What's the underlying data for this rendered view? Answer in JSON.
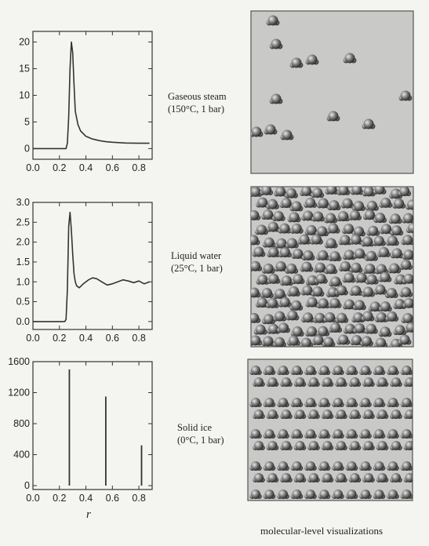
{
  "chart_data": [
    {
      "type": "line",
      "title": "",
      "xlabel": "",
      "ylabel": "",
      "xlim": [
        0.0,
        0.9
      ],
      "ylim": [
        -2,
        22
      ],
      "xticks": [
        "0.0",
        "0.2",
        "0.4",
        "0.6",
        "0.8"
      ],
      "yticks": [
        "0",
        "5",
        "10",
        "15",
        "20"
      ],
      "series": [
        {
          "x": [
            0.0,
            0.2,
            0.25,
            0.26,
            0.27,
            0.28,
            0.29,
            0.3,
            0.31,
            0.32,
            0.34,
            0.36,
            0.4,
            0.45,
            0.5,
            0.55,
            0.6,
            0.7,
            0.8,
            0.88
          ],
          "y": [
            0,
            0,
            0,
            1,
            6,
            15,
            20,
            18,
            12,
            7,
            4.5,
            3.3,
            2.3,
            1.8,
            1.5,
            1.3,
            1.2,
            1.05,
            1.0,
            1.0
          ]
        }
      ]
    },
    {
      "type": "line",
      "title": "",
      "xlabel": "",
      "ylabel": "",
      "xlim": [
        0.0,
        0.9
      ],
      "ylim": [
        -0.2,
        3.0
      ],
      "xticks": [
        "0.0",
        "0.2",
        "0.4",
        "0.6",
        "0.8"
      ],
      "yticks": [
        "0.0",
        "0.5",
        "1.0",
        "1.5",
        "2.0",
        "2.5",
        "3.0"
      ],
      "series": [
        {
          "x": [
            0.0,
            0.24,
            0.25,
            0.26,
            0.27,
            0.28,
            0.29,
            0.3,
            0.31,
            0.32,
            0.33,
            0.35,
            0.38,
            0.42,
            0.45,
            0.48,
            0.52,
            0.56,
            0.6,
            0.64,
            0.68,
            0.72,
            0.76,
            0.8,
            0.84,
            0.88
          ],
          "y": [
            0,
            0,
            0.05,
            0.8,
            2.4,
            2.75,
            2.3,
            1.7,
            1.2,
            1.0,
            0.9,
            0.85,
            0.95,
            1.05,
            1.1,
            1.08,
            1.0,
            0.92,
            0.95,
            1.0,
            1.05,
            1.02,
            0.98,
            1.02,
            0.95,
            1.0
          ]
        }
      ]
    },
    {
      "type": "bar",
      "title": "",
      "xlabel": "r",
      "ylabel": "",
      "xlim": [
        0.0,
        0.9
      ],
      "ylim": [
        -50,
        1600
      ],
      "xticks": [
        "0.0",
        "0.2",
        "0.4",
        "0.6",
        "0.8"
      ],
      "yticks": [
        "0",
        "400",
        "800",
        "1200",
        "1600"
      ],
      "series": [
        {
          "x": [
            0.275,
            0.55,
            0.82
          ],
          "y": [
            1500,
            1150,
            520
          ]
        }
      ]
    }
  ],
  "labels": {
    "steam_1": "Gaseous steam",
    "steam_2": "(150°C, 1 bar)",
    "water_1": "Liquid water",
    "water_2": "(25°C, 1 bar)",
    "ice_1": "Solid ice",
    "ice_2": "(0°C, 1 bar)",
    "r_axis": "r",
    "caption": "molecular-level visualizations"
  },
  "colors": {
    "box_fill": "#c9c9c7",
    "molecule": "#6a6a6a",
    "line": "#333333"
  }
}
